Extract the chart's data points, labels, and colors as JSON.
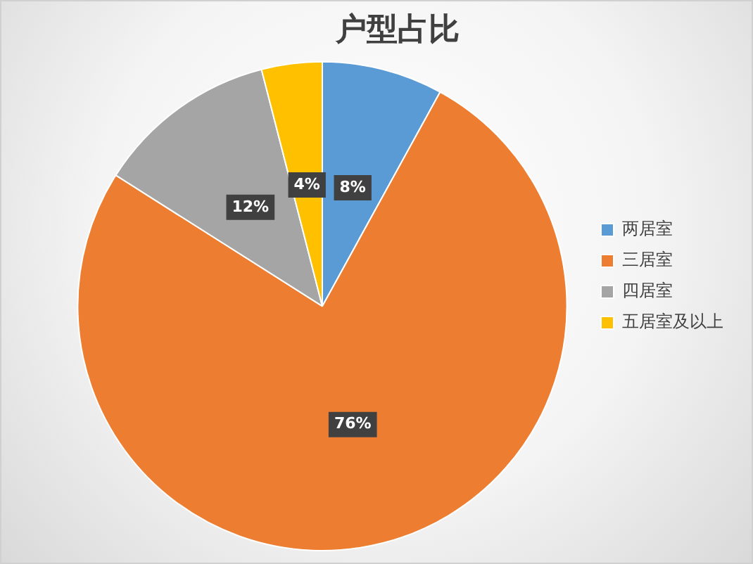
{
  "chart_data": {
    "type": "pie",
    "title": "户型占比",
    "categories": [
      "两居室",
      "三居室",
      "四居室",
      "五居室及以上"
    ],
    "values": [
      8,
      76,
      12,
      4
    ],
    "value_labels": [
      "8%",
      "76%",
      "12%",
      "4%"
    ],
    "colors": [
      "#5b9bd5",
      "#ed7d31",
      "#a5a5a5",
      "#ffc000"
    ],
    "legend": "right"
  }
}
